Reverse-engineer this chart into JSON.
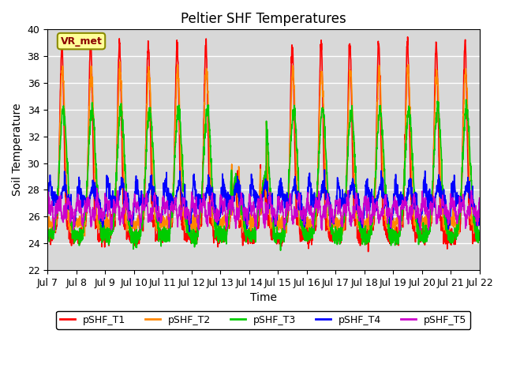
{
  "title": "Peltier SHF Temperatures",
  "ylabel": "Soil Temperature",
  "xlabel": "Time",
  "annotation": "VR_met",
  "xlim_days": [
    7,
    22
  ],
  "ylim": [
    22,
    40
  ],
  "yticks": [
    22,
    24,
    26,
    28,
    30,
    32,
    34,
    36,
    38,
    40
  ],
  "xtick_labels": [
    "Jul 7",
    "Jul 8",
    "Jul 9",
    "Jul 10",
    "Jul 11",
    "Jul 12",
    "Jul 13",
    "Jul 14",
    "Jul 15",
    "Jul 16",
    "Jul 17",
    "Jul 18",
    "Jul 19",
    "Jul 20",
    "Jul 21",
    "Jul 22"
  ],
  "colors": {
    "T1": "#ff0000",
    "T2": "#ff8800",
    "T3": "#00cc00",
    "T4": "#0000ff",
    "T5": "#cc00cc"
  },
  "legend_labels": [
    "pSHF_T1",
    "pSHF_T2",
    "pSHF_T3",
    "pSHF_T4",
    "pSHF_T5"
  ],
  "background_color": "#d8d8d8",
  "grid_color": "#ffffff",
  "linewidth": 1.2,
  "title_fontsize": 12,
  "axis_fontsize": 10,
  "tick_fontsize": 9
}
